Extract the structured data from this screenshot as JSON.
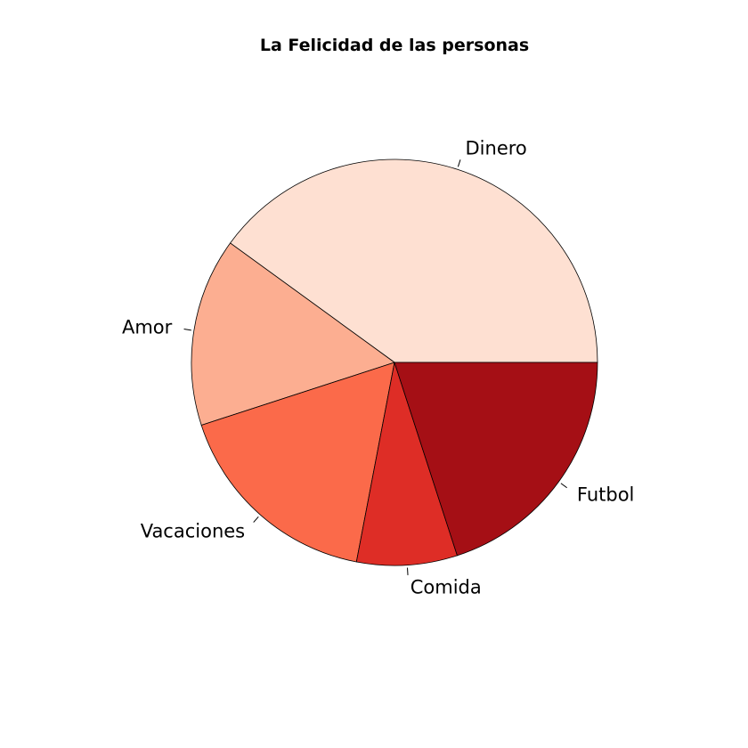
{
  "chart_data": {
    "type": "pie",
    "title": "La Felicidad de las personas",
    "start_angle_deg": 0,
    "direction": "counterclockwise",
    "slices": [
      {
        "label": "Dinero",
        "value": 40,
        "color": "#FEE0D2"
      },
      {
        "label": "Amor",
        "value": 15,
        "color": "#FCAE91"
      },
      {
        "label": "Vacaciones",
        "value": 17,
        "color": "#FB6A4A"
      },
      {
        "label": "Comida",
        "value": 8,
        "color": "#DE2D26"
      },
      {
        "label": "Futbol",
        "value": 20,
        "color": "#A50F15"
      }
    ]
  }
}
